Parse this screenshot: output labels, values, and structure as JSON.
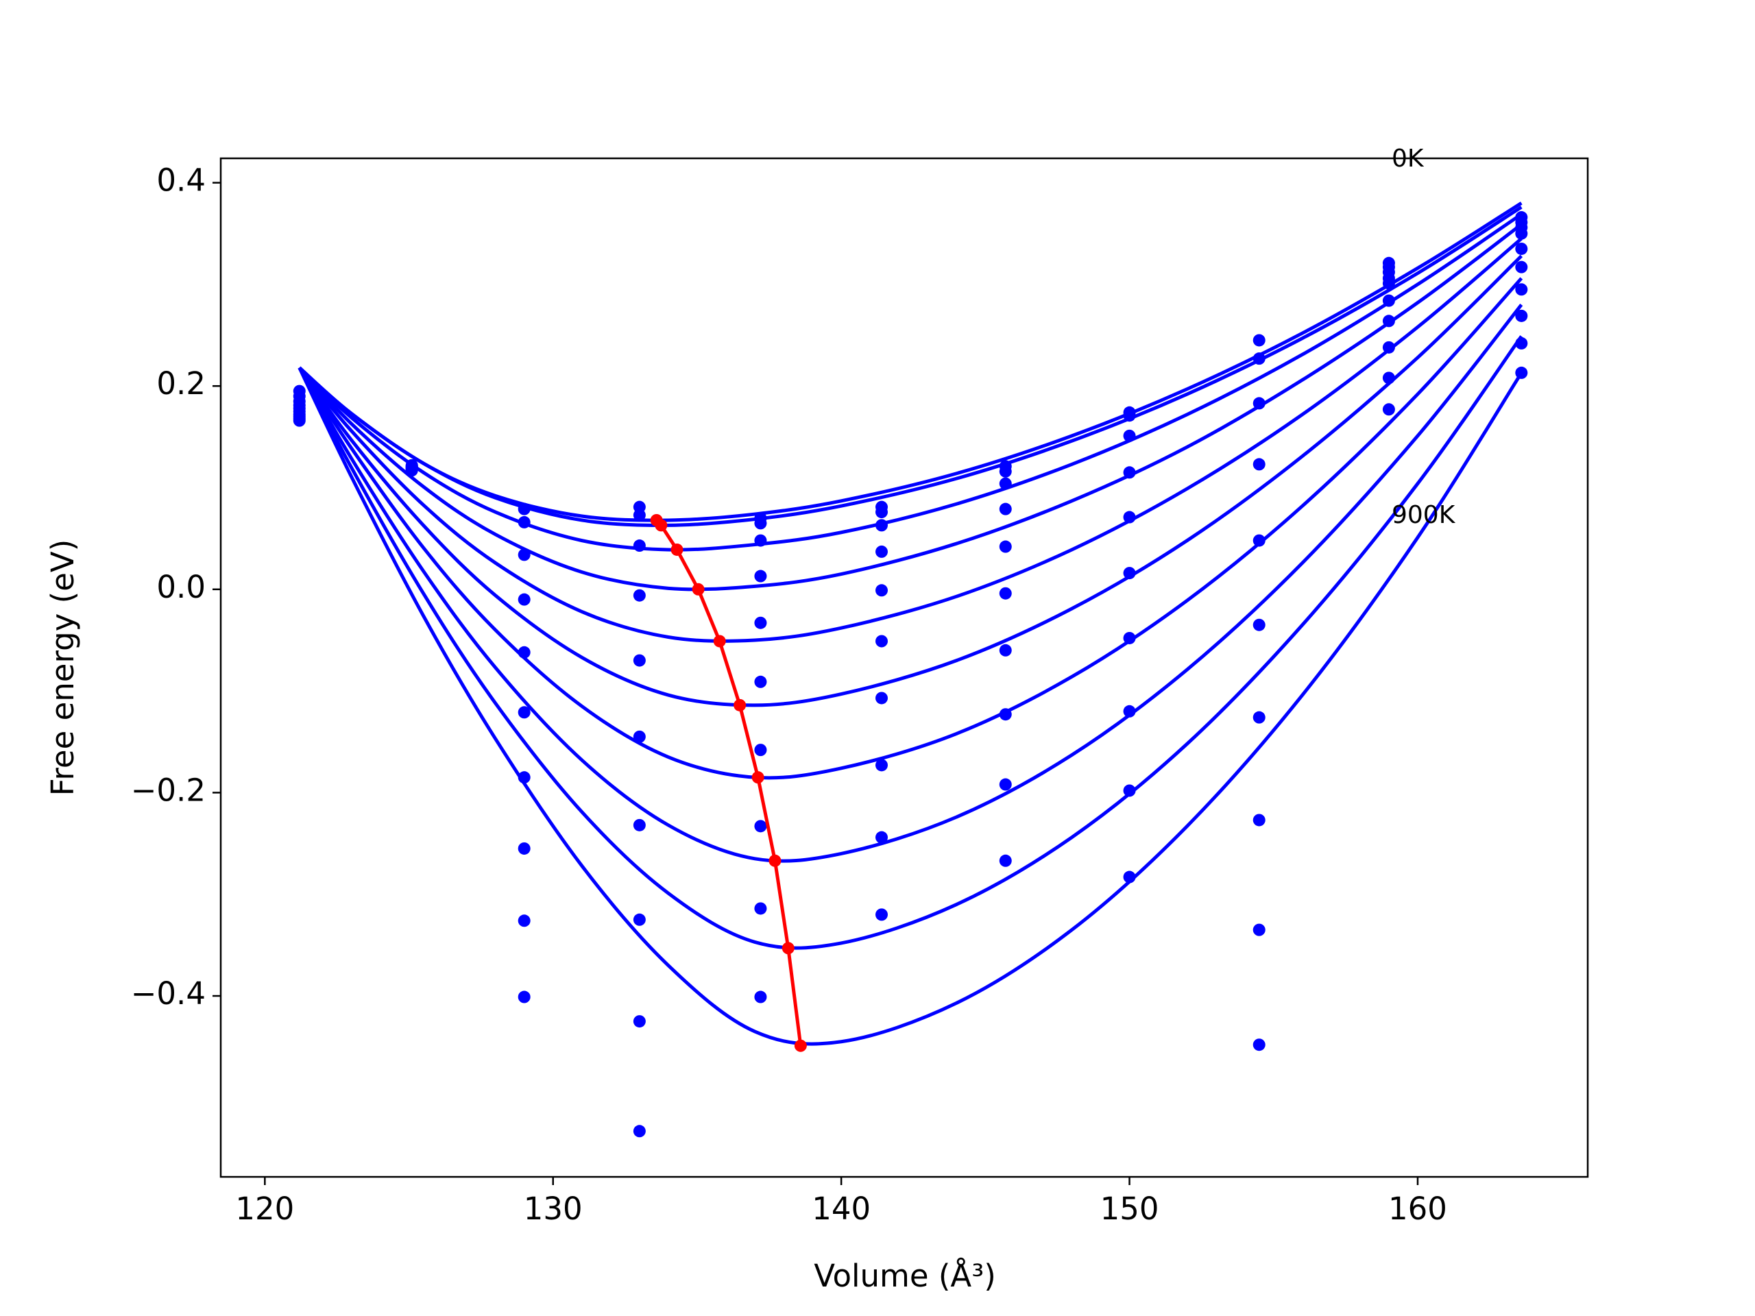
{
  "chart_data": {
    "type": "line",
    "xlabel": "Volume (Å³)",
    "ylabel": "Free energy (eV)",
    "xlim": [
      118.47,
      165.9
    ],
    "ylim": [
      -0.578,
      0.424
    ],
    "xticks": [
      120,
      130,
      140,
      150,
      160
    ],
    "yticks": [
      {
        "value": -0.4,
        "label": "−0.4"
      },
      {
        "value": -0.2,
        "label": "−0.2"
      },
      {
        "value": 0,
        "label": "0.0"
      },
      0.2,
      0.4
    ],
    "annotations": [
      "0K",
      "900K"
    ],
    "series": [
      {
        "color": "#0000ff",
        "line": true,
        "marker": false,
        "x": [
          121.2,
          123,
          125.5,
          128,
          131,
          134,
          137,
          140,
          144,
          148,
          152,
          156,
          160,
          163.6
        ],
        "values": [
          0.218,
          0.173,
          0.124,
          0.092,
          0.072,
          0.068,
          0.074,
          0.087,
          0.114,
          0.151,
          0.197,
          0.252,
          0.316,
          0.38
        ]
      },
      {
        "color": "#0000ff",
        "line": true,
        "marker": false,
        "x": [
          121.2,
          123,
          125.5,
          128,
          131,
          134,
          137,
          140,
          144,
          148,
          152,
          156,
          160,
          163.6
        ],
        "values": [
          0.218,
          0.173,
          0.124,
          0.09,
          0.068,
          0.063,
          0.069,
          0.082,
          0.109,
          0.146,
          0.192,
          0.247,
          0.311,
          0.376
        ]
      },
      {
        "color": "#0000ff",
        "line": true,
        "marker": false,
        "x": [
          121.2,
          123,
          125.5,
          128,
          131,
          134,
          137,
          140,
          144,
          148,
          152,
          156,
          160,
          163.6
        ],
        "values": [
          0.218,
          0.169,
          0.115,
          0.076,
          0.048,
          0.039,
          0.044,
          0.056,
          0.084,
          0.123,
          0.172,
          0.231,
          0.3,
          0.369
        ]
      },
      {
        "color": "#0000ff",
        "line": true,
        "marker": false,
        "x": [
          121.2,
          123,
          125.5,
          128,
          131,
          134,
          137,
          140,
          144,
          148,
          152,
          156,
          160,
          163.6
        ],
        "values": [
          0.218,
          0.163,
          0.101,
          0.054,
          0.017,
          0.001,
          0.003,
          0.015,
          0.045,
          0.087,
          0.14,
          0.206,
          0.282,
          0.359
        ]
      },
      {
        "color": "#0000ff",
        "line": true,
        "marker": false,
        "x": [
          121.2,
          123,
          125.5,
          128,
          131,
          134,
          137,
          140,
          144,
          148,
          152,
          156,
          160,
          163.6
        ],
        "values": [
          0.218,
          0.156,
          0.083,
          0.026,
          -0.022,
          -0.047,
          -0.05,
          -0.038,
          -0.007,
          0.039,
          0.099,
          0.172,
          0.258,
          0.345
        ]
      },
      {
        "color": "#0000ff",
        "line": true,
        "marker": false,
        "x": [
          121.2,
          123,
          125.5,
          128,
          131,
          134,
          137,
          140,
          144,
          148,
          152,
          156,
          160,
          163.6
        ],
        "values": [
          0.218,
          0.147,
          0.063,
          -0.006,
          -0.067,
          -0.104,
          -0.114,
          -0.103,
          -0.07,
          -0.019,
          0.048,
          0.131,
          0.228,
          0.328
        ]
      },
      {
        "color": "#0000ff",
        "line": true,
        "marker": false,
        "x": [
          121.2,
          123,
          125.5,
          128,
          131,
          134,
          137,
          140,
          144,
          148,
          152,
          156,
          160,
          163.6
        ],
        "values": [
          0.218,
          0.139,
          0.041,
          -0.04,
          -0.115,
          -0.165,
          -0.185,
          -0.176,
          -0.142,
          -0.086,
          -0.011,
          0.082,
          0.192,
          0.306
        ]
      },
      {
        "color": "#0000ff",
        "line": true,
        "marker": false,
        "x": [
          121.2,
          123,
          125.5,
          128,
          131,
          134,
          137,
          140,
          144,
          148,
          152,
          156,
          160,
          163.6
        ],
        "values": [
          0.218,
          0.129,
          0.018,
          -0.077,
          -0.168,
          -0.232,
          -0.265,
          -0.26,
          -0.224,
          -0.163,
          -0.079,
          0.026,
          0.151,
          0.28
        ]
      },
      {
        "color": "#0000ff",
        "line": true,
        "marker": false,
        "x": [
          121.2,
          123,
          125.5,
          128,
          131,
          134,
          137,
          140,
          144,
          148,
          152,
          156,
          160,
          163.6
        ],
        "values": [
          0.218,
          0.12,
          -0.004,
          -0.112,
          -0.219,
          -0.299,
          -0.347,
          -0.348,
          -0.31,
          -0.244,
          -0.152,
          -0.035,
          0.104,
          0.249
        ]
      },
      {
        "color": "#0000ff",
        "line": true,
        "marker": false,
        "x": [
          121.2,
          123,
          125.5,
          128,
          131,
          134,
          137,
          140,
          144,
          148,
          152,
          156,
          160,
          163.6
        ],
        "values": [
          0.218,
          0.111,
          -0.026,
          -0.147,
          -0.272,
          -0.37,
          -0.435,
          -0.445,
          -0.407,
          -0.335,
          -0.233,
          -0.104,
          0.051,
          0.213
        ]
      },
      {
        "color": "#0000ff",
        "line": false,
        "marker": true,
        "x": [
          121.2,
          125.1,
          129.0,
          133.0,
          137.2,
          141.4,
          145.7,
          150.0,
          154.5,
          159.0,
          163.6
        ],
        "values": [
          0.166,
          0.122,
          0.079,
          0.081,
          0.07,
          0.081,
          0.121,
          0.174,
          0.245,
          0.321,
          0.366
        ]
      },
      {
        "color": "#0000ff",
        "line": false,
        "marker": true,
        "x": [
          121.2,
          125.1,
          129.0,
          133.0,
          137.2,
          141.4,
          145.7,
          150.0,
          154.5,
          159.0,
          163.6
        ],
        "values": [
          0.168,
          0.121,
          0.066,
          0.073,
          0.065,
          0.076,
          0.116,
          0.171,
          0.227,
          0.317,
          0.361
        ]
      },
      {
        "color": "#0000ff",
        "line": false,
        "marker": true,
        "x": [
          121.2,
          125.1,
          129.0,
          133.0,
          137.2,
          141.4,
          145.7,
          150.0,
          154.5,
          159.0,
          163.6
        ],
        "values": [
          0.17,
          0.121,
          0.034,
          0.043,
          0.048,
          0.063,
          0.104,
          0.151,
          0.183,
          0.312,
          0.356
        ]
      },
      {
        "color": "#0000ff",
        "line": false,
        "marker": true,
        "x": [
          121.2,
          125.1,
          129.0,
          133.0,
          137.2,
          141.4,
          145.7,
          150.0,
          154.5,
          159.0,
          163.6
        ],
        "values": [
          0.172,
          0.12,
          -0.01,
          -0.006,
          0.013,
          0.037,
          0.079,
          0.115,
          0.123,
          0.306,
          0.35
        ]
      },
      {
        "color": "#0000ff",
        "line": false,
        "marker": true,
        "x": [
          121.2,
          125.1,
          129.0,
          133.0,
          137.2,
          141.4,
          145.7,
          150.0,
          154.5,
          159.0,
          163.6
        ],
        "values": [
          0.175,
          0.12,
          -0.062,
          -0.07,
          -0.033,
          -0.001,
          0.042,
          0.071,
          0.048,
          0.301,
          0.335
        ]
      },
      {
        "color": "#0000ff",
        "line": false,
        "marker": true,
        "x": [
          121.2,
          125.1,
          129.0,
          133.0,
          137.2,
          141.4,
          145.7,
          150.0,
          154.5,
          159.0,
          163.6
        ],
        "values": [
          0.178,
          0.119,
          -0.121,
          -0.145,
          -0.091,
          -0.051,
          -0.004,
          0.016,
          -0.035,
          0.284,
          0.317
        ]
      },
      {
        "color": "#0000ff",
        "line": false,
        "marker": true,
        "x": [
          121.2,
          125.1,
          129.0,
          133.0,
          137.2,
          141.4,
          145.7,
          150.0,
          154.5,
          159.0,
          163.6
        ],
        "values": [
          0.181,
          0.119,
          -0.185,
          -0.232,
          -0.158,
          -0.107,
          -0.06,
          -0.048,
          -0.126,
          0.264,
          0.295
        ]
      },
      {
        "color": "#0000ff",
        "line": false,
        "marker": true,
        "x": [
          121.2,
          125.1,
          129.0,
          133.0,
          137.2,
          141.4,
          145.7,
          150.0,
          154.5,
          159.0,
          163.6
        ],
        "values": [
          0.185,
          0.118,
          -0.255,
          -0.325,
          -0.233,
          -0.173,
          -0.123,
          -0.12,
          -0.227,
          0.238,
          0.269
        ]
      },
      {
        "color": "#0000ff",
        "line": false,
        "marker": true,
        "x": [
          121.2,
          125.1,
          129.0,
          133.0,
          137.2,
          141.4,
          145.7,
          150.0,
          154.5,
          159.0,
          163.6
        ],
        "values": [
          0.19,
          0.118,
          -0.326,
          -0.425,
          -0.314,
          -0.244,
          -0.192,
          -0.198,
          -0.335,
          0.208,
          0.242
        ]
      },
      {
        "color": "#0000ff",
        "line": false,
        "marker": true,
        "x": [
          121.2,
          125.1,
          129.0,
          133.0,
          137.2,
          141.4,
          145.7,
          150.0,
          154.5,
          159.0,
          163.6
        ],
        "values": [
          0.195,
          0.117,
          -0.401,
          -0.533,
          -0.401,
          -0.32,
          -0.267,
          -0.283,
          -0.448,
          0.177,
          0.213
        ]
      },
      {
        "color": "#ff0000",
        "line": true,
        "marker": true,
        "x": [
          133.59,
          133.75,
          134.3,
          135.04,
          135.78,
          136.48,
          137.11,
          137.7,
          138.16,
          138.59
        ],
        "values": [
          0.068,
          0.063,
          0.039,
          0.0,
          -0.051,
          -0.114,
          -0.185,
          -0.267,
          -0.353,
          -0.449
        ]
      }
    ]
  }
}
